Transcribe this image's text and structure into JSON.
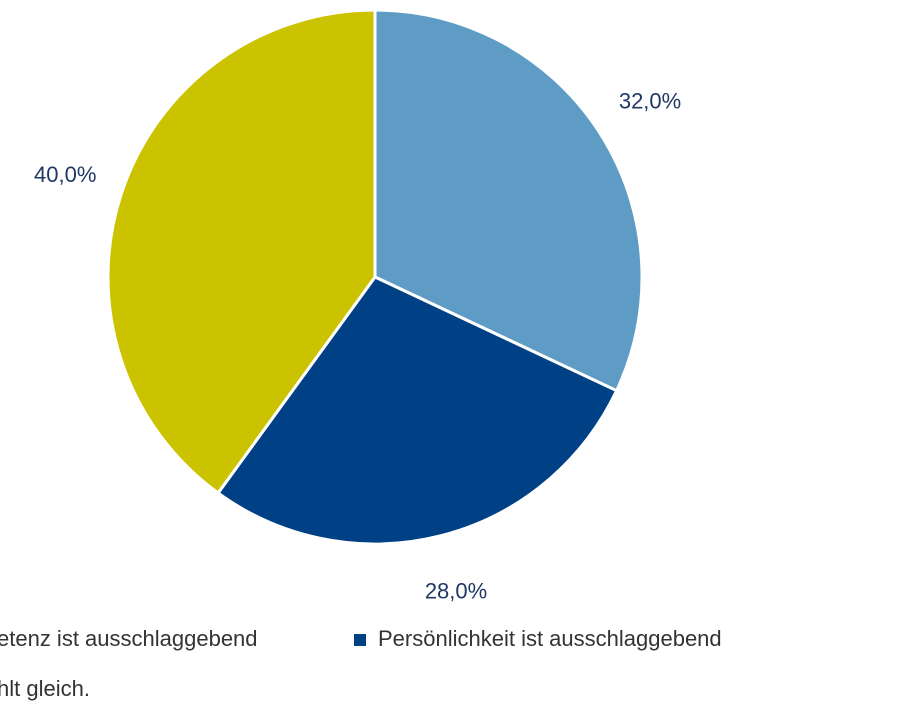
{
  "chart_data": {
    "type": "pie",
    "categories": [
      "etenz ist ausschlaggebend",
      "Persönlichkeit ist ausschlaggebend",
      "hlt gleich."
    ],
    "values": [
      32,
      28,
      40
    ],
    "value_labels": [
      "32,0%",
      "28,0%",
      "40,0%"
    ],
    "colors": [
      "#5e9bc5",
      "#004186",
      "#ccc300"
    ]
  }
}
